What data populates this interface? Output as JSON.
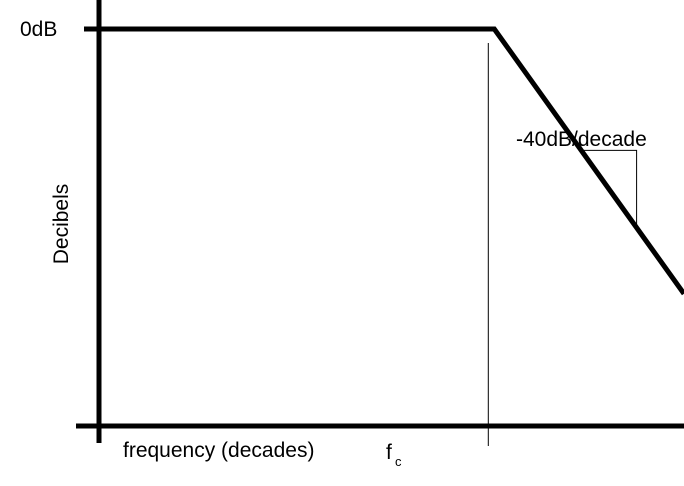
{
  "chart_data": {
    "type": "line",
    "title": "",
    "xlabel": "frequency (decades)",
    "ylabel": "Decibels",
    "y_tick_label": "0dB",
    "corner_label": "f",
    "corner_label_subscript": "c",
    "slope_label": "-40dB/decade",
    "x_scale": "log",
    "x_unit": "decades relative to corner frequency",
    "y_unit": "dB",
    "series": [
      {
        "points": [
          {
            "x": -2.5,
            "y": 0
          },
          {
            "x": 0,
            "y": 0
          },
          {
            "x": 1.2,
            "y": -48
          }
        ]
      }
    ],
    "corner_x": 0,
    "slope_db_per_decade": -40,
    "slope_triangle": {
      "x_start": 0.55,
      "x_end": 0.9
    },
    "xlim": [
      -2.5,
      1.2
    ],
    "ylim": [
      -68,
      0
    ],
    "grid": false,
    "legend": "none",
    "colors": {
      "line": "#000000",
      "axis": "#000000",
      "background": "#ffffff"
    }
  }
}
